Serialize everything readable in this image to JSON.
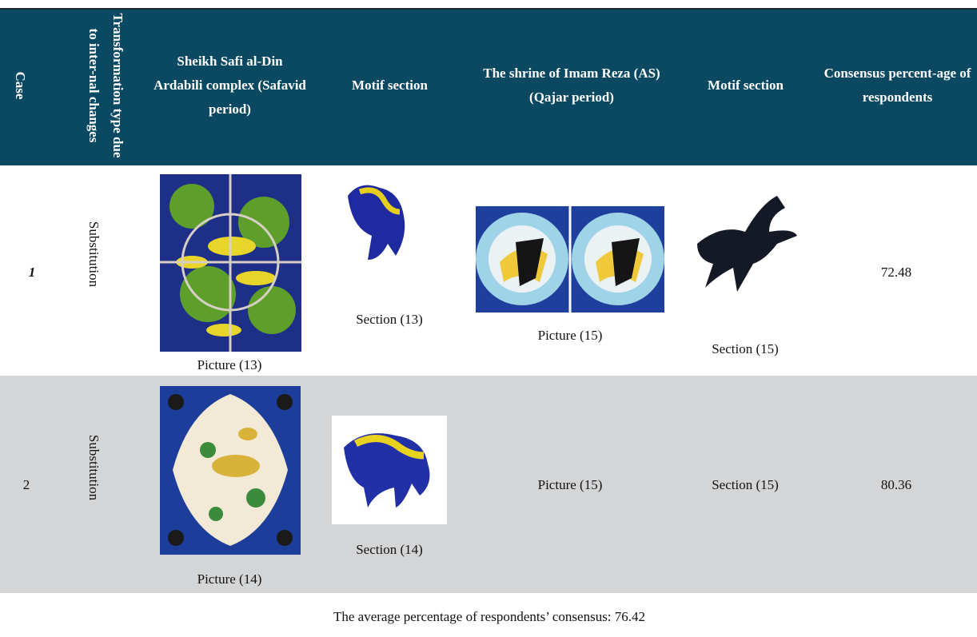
{
  "header": {
    "columns": [
      "Case",
      "Transformation type due to inter-nal changes",
      "Sheikh Safi al-Din Ardabili complex (Safavid period)",
      "Motif section",
      "The shrine of Imam Reza (AS) (Qajar period)",
      "Motif section",
      "Consensus percent-age of respondents"
    ]
  },
  "rows": [
    {
      "case": "1",
      "transformation": "Substitution",
      "picture_a": "Picture (13)",
      "section_a": "Section (13)",
      "picture_b": "Picture (15)",
      "section_b": "Section (15)",
      "consensus": "72.48"
    },
    {
      "case": "2",
      "transformation": "Substitution",
      "picture_a": "Picture (14)",
      "section_a": "Section (14)",
      "picture_b": "Picture (15)",
      "section_b": "Section (15)",
      "consensus": "80.36"
    }
  ],
  "footer": "The average percentage of respondents’ consensus: 76.42"
}
